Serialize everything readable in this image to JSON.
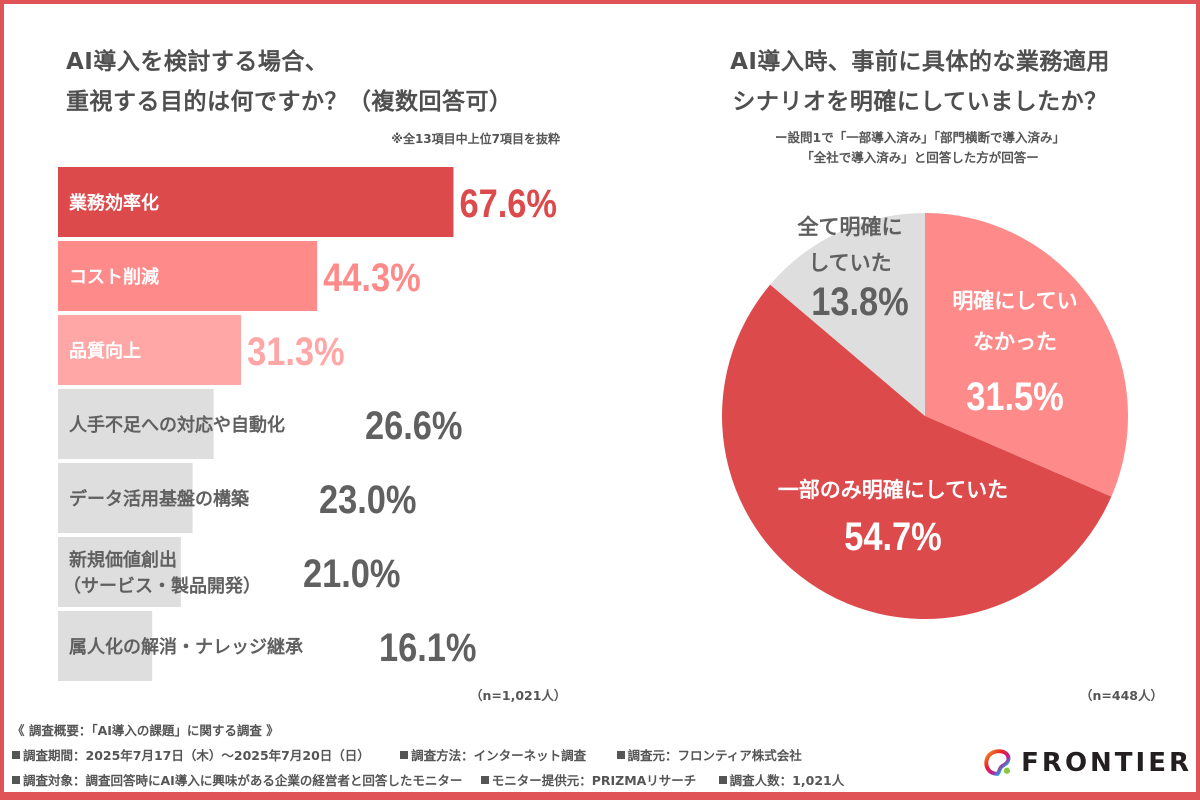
{
  "colors": {
    "frame": "#e05356",
    "primary": "#dc4a4c",
    "secondary": "#ff8a8a",
    "tertiary": "#ffa7a7",
    "neutral": "#dedede",
    "neutral_text": "#606060",
    "white": "#ffffff"
  },
  "left_panel": {
    "title_line1": "AI導入を検討する場合、",
    "title_line2": "重視する目的は何ですか？（複数回答可）",
    "note": "※全13項目中上位7項目を抜粋",
    "sample": "（n=1,021人）"
  },
  "right_panel": {
    "title_line1": "AI導入時、事前に具体的な業務適用",
    "title_line2": "シナリオを明確にしていましたか？",
    "sub_line1": "ー設問1で「一部導入済み」「部門横断で導入済み」",
    "sub_line2": "「全社で導入済み」と回答した方が回答ー",
    "sample": "（n=448人）"
  },
  "chart_data": [
    {
      "type": "bar",
      "orientation": "horizontal",
      "title": "AI導入を検討する場合、重視する目的は何ですか？（複数回答可）",
      "subtitle": "※全13項目中上位7項目を抜粋",
      "categories": [
        "業務効率化",
        "コスト削減",
        "品質向上",
        "人手不足への対応や自動化",
        "データ活用基盤の構築",
        "新規価値創出（サービス・製品開発）",
        "属人化の解消・ナレッジ継承"
      ],
      "label_lines": [
        [
          "業務効率化"
        ],
        [
          "コスト削減"
        ],
        [
          "品質向上"
        ],
        [
          "人手不足への対応や自動化"
        ],
        [
          "データ活用基盤の構築"
        ],
        [
          "新規価値創出",
          "（サービス・製品開発）"
        ],
        [
          "属人化の解消・ナレッジ継承"
        ]
      ],
      "values": [
        67.6,
        44.3,
        31.3,
        26.6,
        23.0,
        21.0,
        16.1
      ],
      "value_labels": [
        "67.6%",
        "44.3%",
        "31.3%",
        "26.6%",
        "23.0%",
        "21.0%",
        "16.1%"
      ],
      "unit": "%",
      "xlim": [
        0,
        100
      ],
      "grid": false,
      "n": "n=1,021人"
    },
    {
      "type": "pie",
      "title": "AI導入時、事前に具体的な業務適用シナリオを明確にしていましたか？",
      "subtitle": "設問1で「一部導入済み」「部門横断で導入済み」「全社で導入済み」と回答した方が回答",
      "slices": [
        {
          "label": "明確にしていなかった",
          "label_lines": [
            "明確にしてい",
            "なかった"
          ],
          "value": 31.5,
          "value_label": "31.5%"
        },
        {
          "label": "一部のみ明確にしていた",
          "label_lines": [
            "一部のみ明確にしていた"
          ],
          "value": 54.7,
          "value_label": "54.7%"
        },
        {
          "label": "全て明確にしていた",
          "label_lines": [
            "全て明確に",
            "していた"
          ],
          "value": 13.8,
          "value_label": "13.8%"
        }
      ],
      "start": "12 o'clock",
      "direction": "clockwise",
      "n": "n=448人"
    }
  ],
  "footer": {
    "title": "《 調査概要：「AI導入の課題」に関する調査 》",
    "period": "調査期間：2025年7月17日（木）～2025年7月20日（日）",
    "method": "調査方法：インターネット調査",
    "organizer": "調査元：フロンティア株式会社",
    "target": "調査対象：調査回答時にAI導入に興味がある企業の経営者と回答したモニター",
    "provider": "モニター提供元：PRIZMAリサーチ",
    "count": "調査人数：1,021人"
  },
  "logo": {
    "text": "FRONTIER",
    "icon": "frontier-swirl-icon"
  }
}
